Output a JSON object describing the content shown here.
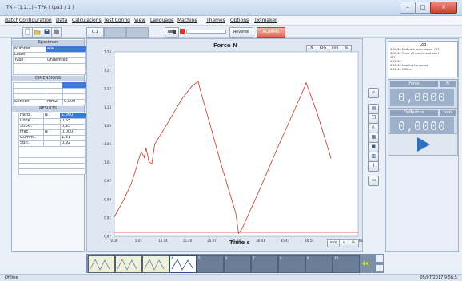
{
  "window": {
    "title": "TX - (1.2.1) - TPA ( tpa1 / 1 )",
    "min_label": "–",
    "max_label": "□",
    "close_label": "✕"
  },
  "menu": [
    "Batch",
    "Configuration",
    "Data",
    "Calculations",
    "Test Config",
    "View",
    "Language",
    "Machine",
    "Themes",
    "Options",
    "Txtmaker"
  ],
  "toolbar": {
    "btn_a": "0.1",
    "reverse_label": "Reverse",
    "alarms_label": "ALARMS"
  },
  "specimen": {
    "header": "Specimen",
    "rows": [
      {
        "label": "Number",
        "value": "4/4",
        "selected": true
      },
      {
        "label": "Label",
        "value": ""
      },
      {
        "label": "Type",
        "value": "Undefined"
      }
    ]
  },
  "dimensions": {
    "header": "DIMENSIONS",
    "section_label": "Section",
    "section_unit": "mm2",
    "section_value": "0,000"
  },
  "results": {
    "header": "RESULTS",
    "rows": [
      {
        "name": "Hard..",
        "unit": "N",
        "value": "1,560",
        "selected": true
      },
      {
        "name": "Cohe..",
        "unit": "",
        "value": "0,55"
      },
      {
        "name": "Stick..",
        "unit": "",
        "value": "0,93"
      },
      {
        "name": "Frac..",
        "unit": "N",
        "value": "0,000"
      },
      {
        "name": "Gumm..",
        "unit": "",
        "value": "1,31"
      },
      {
        "name": "Spri..",
        "unit": "",
        "value": "0,92"
      }
    ]
  },
  "chart_unit_buttons": [
    "N",
    "KPa",
    "mm",
    "%"
  ],
  "x_unit_buttons": [
    "mm",
    "s",
    "%"
  ],
  "chart_data": {
    "type": "line",
    "title": "Force  N",
    "xlabel": "Time  s",
    "ylabel": "",
    "xlim": [
      0,
      50.6
    ],
    "ylim": [
      0.87,
      1.24
    ],
    "x_ticks": [
      "0.00",
      "5.07",
      "10.14",
      "15.20",
      "20.27",
      "25.34",
      "30.41",
      "35.47",
      "40.54",
      "45.61",
      "50.68"
    ],
    "y_ticks": [
      "0.87",
      "0.91",
      "0.94",
      "0.97",
      "1.01",
      "1.06",
      "1.09",
      "1.13",
      "1.17",
      "1.21",
      "1.24"
    ],
    "grid": false,
    "series": [
      {
        "color": "#c0392b",
        "x": [
          0,
          2.0,
          3.5,
          4.5,
          5.0,
          5.6,
          6.2,
          6.6,
          7.2,
          7.8,
          8.4,
          10.0,
          12.0,
          14.0,
          16.0,
          17.4,
          18.0,
          20.0,
          22.0,
          24.0,
          25.2,
          25.8,
          26.5,
          30.0,
          34.0,
          37.0,
          39.3,
          39.8,
          42.0,
          45.0
        ],
        "y": [
          0.909,
          0.944,
          0.975,
          1.004,
          1.022,
          1.04,
          1.028,
          1.047,
          1.02,
          1.015,
          1.055,
          1.08,
          1.112,
          1.145,
          1.17,
          1.181,
          1.158,
          1.09,
          1.02,
          0.955,
          0.917,
          0.876,
          0.885,
          0.96,
          1.05,
          1.115,
          1.165,
          1.178,
          1.12,
          1.026
        ]
      },
      {
        "color": "#c0392b",
        "x": [
          0,
          50.6
        ],
        "y": [
          0.878,
          0.878
        ]
      }
    ]
  },
  "log": {
    "header": "Log",
    "lines": [
      "0.06.34    Dedicate screensaver OFF",
      "0.06.34    Temp off machine at start",
      "OFF",
      "0.06.34",
      "0.06.34    Loading Language",
      "0.06.34    Offline"
    ]
  },
  "force_display": {
    "label": "Force",
    "unit": "N",
    "value": "0,0000"
  },
  "deflection_display": {
    "label": "Deflection",
    "unit": "mm",
    "value": "0,0000"
  },
  "thumbnails": [
    "1",
    "2",
    "3",
    "4",
    "5",
    "6",
    "7",
    "8",
    "9",
    "10"
  ],
  "status": {
    "left": "Offline",
    "right": "05/07/2017 9:56:5"
  }
}
